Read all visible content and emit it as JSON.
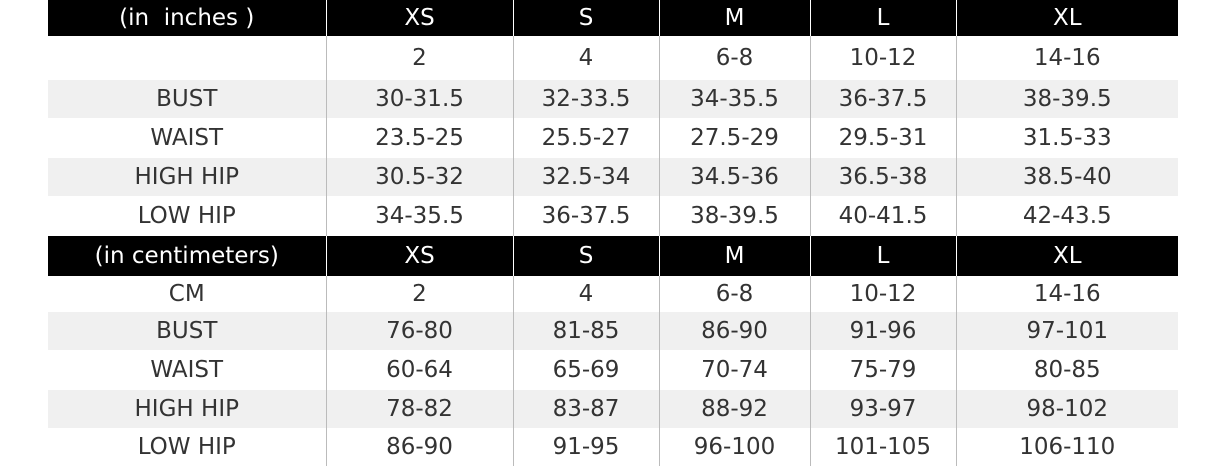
{
  "sections": [
    {
      "header": [
        "(in  inches )",
        "XS",
        "S",
        "M",
        "L",
        "XL"
      ],
      "rows": [
        {
          "cells": [
            "2",
            "4",
            "6-8",
            "10-12",
            "14-16"
          ]
        },
        {
          "label": "BUST",
          "cells": [
            "30-31.5",
            "32-33.5",
            "34-35.5",
            "36-37.5",
            "38-39.5"
          ]
        },
        {
          "label": "WAIST",
          "cells": [
            "23.5-25",
            "25.5-27",
            "27.5-29",
            "29.5-31",
            "31.5-33"
          ]
        },
        {
          "label": "HIGH HIP",
          "cells": [
            "30.5-32",
            "32.5-34",
            "34.5-36",
            "36.5-38",
            "38.5-40"
          ]
        },
        {
          "label": "LOW HIP",
          "cells": [
            "34-35.5",
            "36-37.5",
            "38-39.5",
            "40-41.5",
            "42-43.5"
          ]
        }
      ]
    },
    {
      "header": [
        "(in centimeters)",
        "XS",
        "S",
        "M",
        "L",
        "XL"
      ],
      "rows": [
        {
          "label": "CM",
          "cells": [
            "2",
            "4",
            "6-8",
            "10-12",
            "14-16"
          ]
        },
        {
          "label": "BUST",
          "cells": [
            "76-80",
            "81-85",
            "86-90",
            "91-96",
            "97-101"
          ]
        },
        {
          "label": "WAIST",
          "cells": [
            "60-64",
            "65-69",
            "70-74",
            "75-79",
            "80-85"
          ]
        },
        {
          "label": "HIGH HIP",
          "cells": [
            "78-82",
            "83-87",
            "88-92",
            "93-97",
            "98-102"
          ]
        },
        {
          "label": "LOW HIP",
          "cells": [
            "86-90",
            "91-95",
            "96-100",
            "101-105",
            "106-110"
          ]
        }
      ]
    }
  ]
}
